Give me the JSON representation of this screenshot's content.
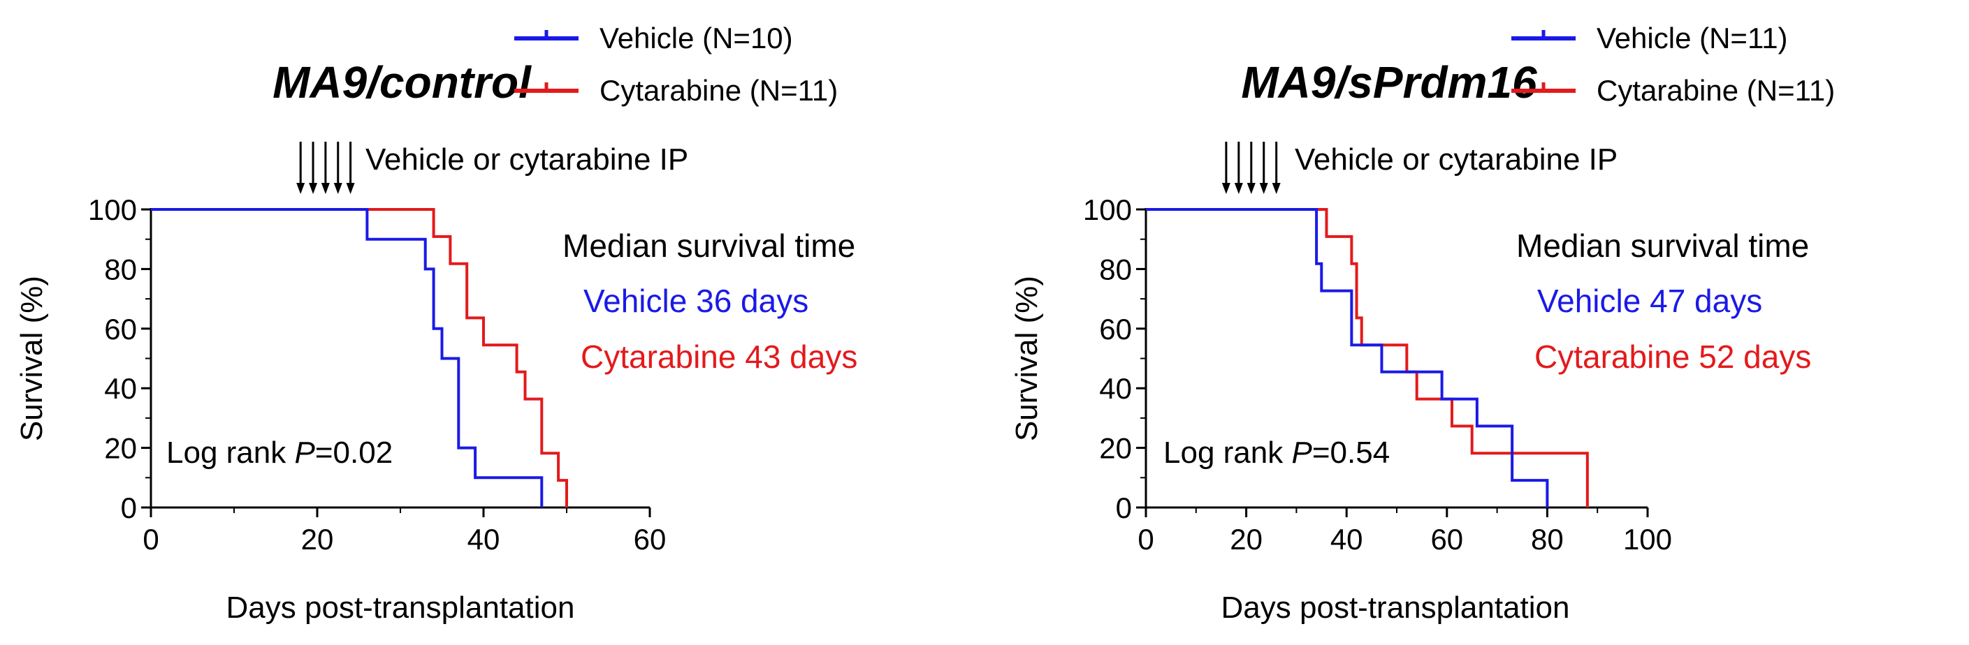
{
  "colors": {
    "vehicle": "#1a1ae6",
    "cytarabine": "#e31a1c",
    "axis": "#000000"
  },
  "chart_data": [
    {
      "type": "line",
      "title": "MA9/control",
      "xlabel": "Days post-transplantation",
      "ylabel": "Survival (%)",
      "xlim": [
        0,
        60
      ],
      "ylim": [
        0,
        100
      ],
      "xticks": [
        0,
        20,
        40,
        60
      ],
      "yticks": [
        0,
        20,
        40,
        60,
        80,
        100
      ],
      "annotation": "Vehicle or cytarabine IP",
      "injection_days": [
        18,
        19.5,
        21,
        22.5,
        24
      ],
      "median_heading": "Median survival time",
      "stat_prefix": "Log rank ",
      "stat_symbol": "P",
      "stat_value": "=0.02",
      "series": [
        {
          "name": "Vehicle (N=10)",
          "median_label": "Vehicle 36 days",
          "color": "#1a1ae6",
          "steps": [
            [
              0,
              100
            ],
            [
              26,
              90
            ],
            [
              33,
              80
            ],
            [
              34,
              60
            ],
            [
              35,
              50
            ],
            [
              37,
              20
            ],
            [
              39,
              10
            ],
            [
              47,
              0
            ]
          ]
        },
        {
          "name": "Cytarabine (N=11)",
          "median_label": "Cytarabine 43 days",
          "color": "#e31a1c",
          "steps": [
            [
              0,
              100
            ],
            [
              34,
              90.9
            ],
            [
              36,
              81.8
            ],
            [
              38,
              63.6
            ],
            [
              40,
              54.5
            ],
            [
              44,
              45.5
            ],
            [
              45,
              36.4
            ],
            [
              47,
              18.2
            ],
            [
              49,
              9.1
            ],
            [
              50,
              0
            ]
          ]
        }
      ]
    },
    {
      "type": "line",
      "title": "MA9/sPrdm16",
      "xlabel": "Days post-transplantation",
      "ylabel": "Survival (%)",
      "xlim": [
        0,
        100
      ],
      "ylim": [
        0,
        100
      ],
      "xticks": [
        0,
        20,
        40,
        60,
        80,
        100
      ],
      "yticks": [
        0,
        20,
        40,
        60,
        80,
        100
      ],
      "annotation": "Vehicle or cytarabine IP",
      "injection_days": [
        16,
        18.5,
        21,
        23.5,
        26
      ],
      "median_heading": "Median survival time",
      "stat_prefix": "Log rank ",
      "stat_symbol": "P",
      "stat_value": "=0.54",
      "series": [
        {
          "name": "Vehicle (N=11)",
          "median_label": "Vehicle 47 days",
          "color": "#1a1ae6",
          "steps": [
            [
              0,
              100
            ],
            [
              34,
              81.8
            ],
            [
              35,
              72.7
            ],
            [
              41,
              54.5
            ],
            [
              47,
              45.5
            ],
            [
              59,
              36.4
            ],
            [
              66,
              27.3
            ],
            [
              73,
              9.1
            ],
            [
              80,
              0
            ]
          ]
        },
        {
          "name": "Cytarabine (N=11)",
          "median_label": "Cytarabine 52 days",
          "color": "#e31a1c",
          "steps": [
            [
              0,
              100
            ],
            [
              36,
              90.9
            ],
            [
              41,
              81.8
            ],
            [
              42,
              63.6
            ],
            [
              43,
              54.5
            ],
            [
              52,
              45.5
            ],
            [
              54,
              36.4
            ],
            [
              61,
              27.3
            ],
            [
              65,
              18.2
            ],
            [
              88,
              0
            ]
          ]
        }
      ]
    }
  ]
}
